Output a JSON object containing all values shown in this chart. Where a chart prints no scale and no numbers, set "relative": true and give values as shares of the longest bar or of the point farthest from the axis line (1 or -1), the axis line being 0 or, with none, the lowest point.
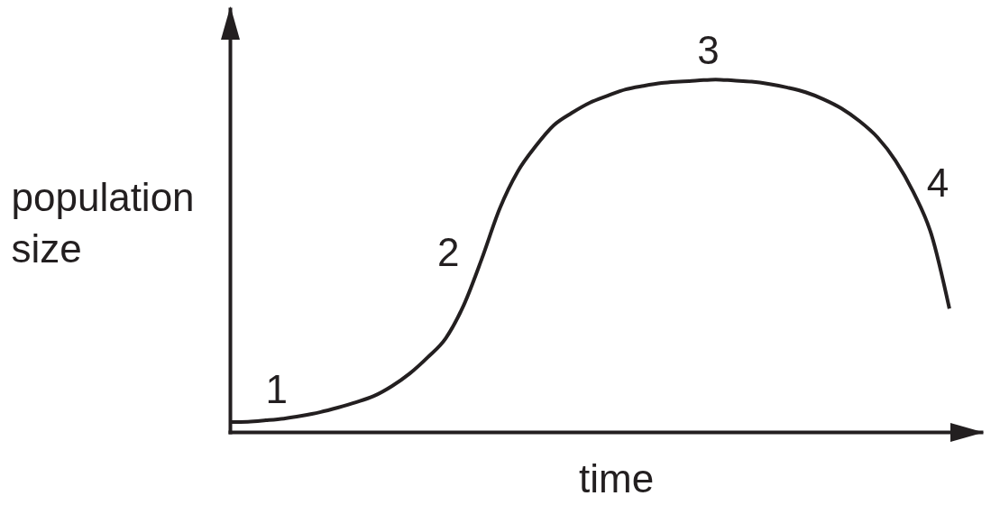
{
  "chart_data": {
    "type": "line",
    "xlabel": "time",
    "ylabel": "population size",
    "relative": true,
    "color": "#231f20",
    "categories": [
      null,
      null,
      null,
      null,
      null,
      null,
      null,
      null,
      null,
      null,
      null,
      null,
      null,
      null,
      null,
      null,
      null,
      null,
      null,
      null,
      null,
      null,
      null,
      null,
      null,
      null,
      null,
      null,
      null,
      null,
      null,
      null,
      null,
      null,
      null,
      null,
      null,
      null,
      null,
      null,
      null
    ],
    "values": [
      0.028,
      0.029,
      0.033,
      0.038,
      0.046,
      0.056,
      0.069,
      0.084,
      0.102,
      0.13,
      0.166,
      0.212,
      0.266,
      0.36,
      0.491,
      0.634,
      0.739,
      0.811,
      0.87,
      0.905,
      0.934,
      0.954,
      0.972,
      0.982,
      0.99,
      0.994,
      0.997,
      1,
      0.997,
      0.994,
      0.987,
      0.977,
      0.964,
      0.944,
      0.918,
      0.882,
      0.836,
      0.77,
      0.68,
      0.56,
      0.35
    ],
    "annotations": [
      {
        "text": "1",
        "y": 0.038
      },
      "2",
      {
        "text": "3",
        "y": 1
      },
      "4"
    ]
  }
}
